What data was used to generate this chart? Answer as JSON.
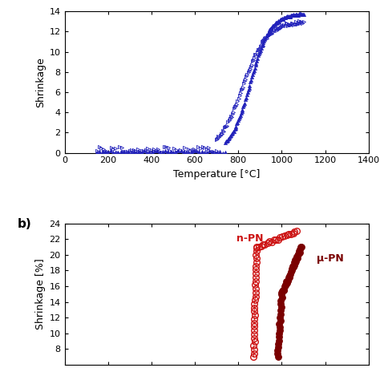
{
  "top_panel": {
    "xlabel": "Temperature [°C]",
    "ylabel": "Shrinkage",
    "xlim": [
      0,
      1400
    ],
    "ylim": [
      0,
      14
    ],
    "xticks": [
      0,
      200,
      400,
      600,
      800,
      1000,
      1200,
      1400
    ],
    "yticks": [
      0,
      2,
      4,
      6,
      8,
      10,
      12,
      14
    ],
    "color": "#2222bb"
  },
  "bottom_panel": {
    "ylabel": "Shrinkage [%]",
    "xlim": [
      0,
      1400
    ],
    "ylim": [
      6,
      24
    ],
    "yticks": [
      8,
      10,
      12,
      14,
      16,
      18,
      20,
      22,
      24
    ],
    "color_open": "#cc1111",
    "color_filled": "#7a0000",
    "label_open": "n-PN",
    "label_filled": "μ-PN",
    "panel_label": "b)"
  },
  "background_color": "#ffffff"
}
